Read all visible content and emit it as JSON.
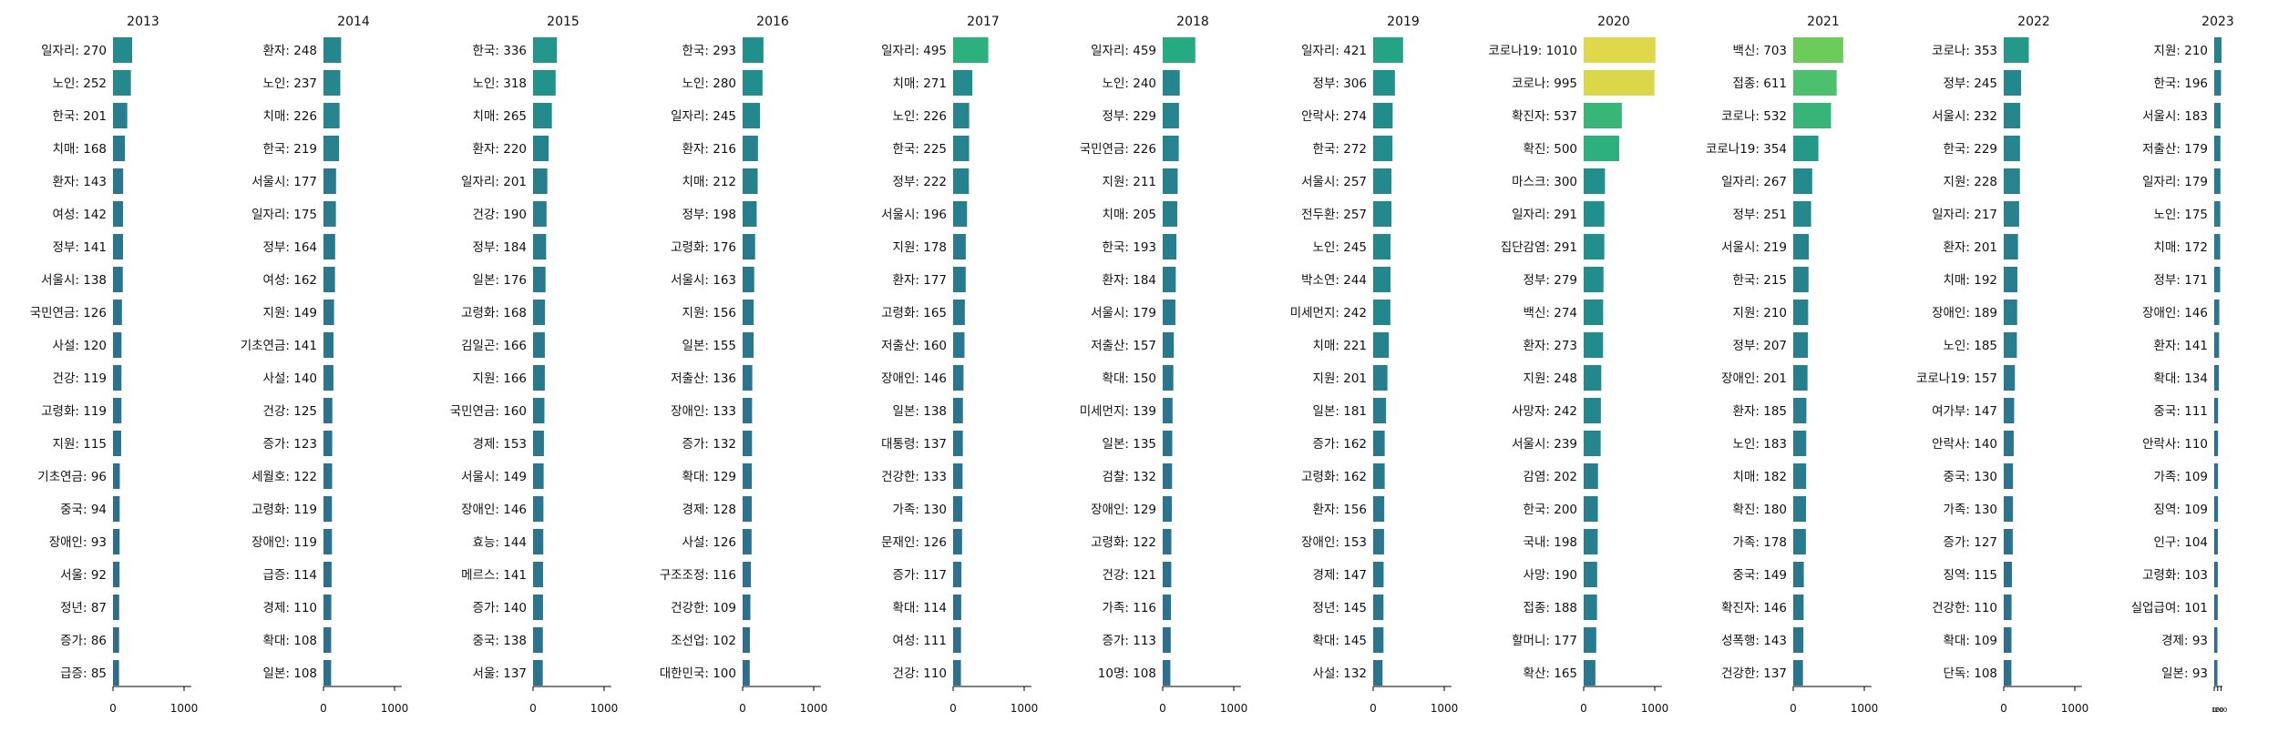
{
  "chart_data": [
    {
      "type": "bar",
      "title": "2013",
      "x_ticks": [
        "0",
        "1000"
      ],
      "xlim": [
        0,
        1100
      ],
      "categories": [
        "일자리",
        "노인",
        "한국",
        "치매",
        "환자",
        "여성",
        "정부",
        "서울시",
        "국민연금",
        "사설",
        "건강",
        "고령화",
        "지원",
        "기초연금",
        "중국",
        "장애인",
        "서울",
        "정년",
        "증가",
        "급증"
      ],
      "values": [
        270,
        252,
        201,
        168,
        143,
        142,
        141,
        138,
        126,
        120,
        119,
        119,
        115,
        96,
        94,
        93,
        92,
        87,
        86,
        85
      ],
      "labels": [
        "일자리: 270",
        "노인: 252",
        "한국: 201",
        "치매: 168",
        "환자: 143",
        "여성: 142",
        "정부: 141",
        "서울시: 138",
        "국민연금: 126",
        "사설: 120",
        "건강: 119",
        "고령화: 119",
        "지원: 115",
        "기초연금: 96",
        "중국: 94",
        "장애인: 93",
        "서울: 92",
        "정년: 87",
        "증가: 86",
        "급증: 85"
      ]
    },
    {
      "type": "bar",
      "title": "2014",
      "x_ticks": [
        "0",
        "1000"
      ],
      "xlim": [
        0,
        1100
      ],
      "categories": [
        "환자",
        "노인",
        "치매",
        "한국",
        "서울시",
        "일자리",
        "정부",
        "여성",
        "지원",
        "기초연금",
        "사설",
        "건강",
        "증가",
        "세월호",
        "고령화",
        "장애인",
        "급증",
        "경제",
        "확대",
        "일본"
      ],
      "values": [
        248,
        237,
        226,
        219,
        177,
        175,
        164,
        162,
        149,
        141,
        140,
        125,
        123,
        122,
        119,
        119,
        114,
        110,
        108,
        108
      ],
      "labels": [
        "환자: 248",
        "노인: 237",
        "치매: 226",
        "한국: 219",
        "서울시: 177",
        "일자리: 175",
        "정부: 164",
        "여성: 162",
        "지원: 149",
        "기초연금: 141",
        "사설: 140",
        "건강: 125",
        "증가: 123",
        "세월호: 122",
        "고령화: 119",
        "장애인: 119",
        "급증: 114",
        "경제: 110",
        "확대: 108",
        "일본: 108"
      ]
    },
    {
      "type": "bar",
      "title": "2015",
      "x_ticks": [
        "0",
        "1000"
      ],
      "xlim": [
        0,
        1100
      ],
      "categories": [
        "한국",
        "노인",
        "치매",
        "환자",
        "일자리",
        "건강",
        "정부",
        "일본",
        "고령화",
        "김일곤",
        "지원",
        "국민연금",
        "경제",
        "서울시",
        "장애인",
        "효능",
        "메르스",
        "증가",
        "중국",
        "서울"
      ],
      "values": [
        336,
        318,
        265,
        220,
        201,
        190,
        184,
        176,
        168,
        166,
        166,
        160,
        153,
        149,
        146,
        144,
        141,
        140,
        138,
        137
      ],
      "labels": [
        "한국: 336",
        "노인: 318",
        "치매: 265",
        "환자: 220",
        "일자리: 201",
        "건강: 190",
        "정부: 184",
        "일본: 176",
        "고령화: 168",
        "김일곤: 166",
        "지원: 166",
        "국민연금: 160",
        "경제: 153",
        "서울시: 149",
        "장애인: 146",
        "효능: 144",
        "메르스: 141",
        "증가: 140",
        "중국: 138",
        "서울: 137"
      ]
    },
    {
      "type": "bar",
      "title": "2016",
      "x_ticks": [
        "0",
        "1000"
      ],
      "xlim": [
        0,
        1100
      ],
      "categories": [
        "한국",
        "노인",
        "일자리",
        "환자",
        "치매",
        "정부",
        "고령화",
        "서울시",
        "지원",
        "일본",
        "저출산",
        "장애인",
        "증가",
        "확대",
        "경제",
        "사설",
        "구조조정",
        "건강한",
        "조선업",
        "대한민국"
      ],
      "values": [
        293,
        280,
        245,
        216,
        212,
        198,
        176,
        163,
        156,
        155,
        136,
        133,
        132,
        129,
        128,
        126,
        116,
        109,
        102,
        100
      ],
      "labels": [
        "한국: 293",
        "노인: 280",
        "일자리: 245",
        "환자: 216",
        "치매: 212",
        "정부: 198",
        "고령화: 176",
        "서울시: 163",
        "지원: 156",
        "일본: 155",
        "저출산: 136",
        "장애인: 133",
        "증가: 132",
        "확대: 129",
        "경제: 128",
        "사설: 126",
        "구조조정: 116",
        "건강한: 109",
        "조선업: 102",
        "대한민국: 100"
      ]
    },
    {
      "type": "bar",
      "title": "2017",
      "x_ticks": [
        "0",
        "1000"
      ],
      "xlim": [
        0,
        1100
      ],
      "categories": [
        "일자리",
        "치매",
        "노인",
        "한국",
        "정부",
        "서울시",
        "지원",
        "환자",
        "고령화",
        "저출산",
        "장애인",
        "일본",
        "대통령",
        "건강한",
        "가족",
        "문재인",
        "증가",
        "확대",
        "여성",
        "건강"
      ],
      "values": [
        495,
        271,
        226,
        225,
        222,
        196,
        178,
        177,
        165,
        160,
        146,
        138,
        137,
        133,
        130,
        126,
        117,
        114,
        111,
        110
      ],
      "labels": [
        "일자리: 495",
        "치매: 271",
        "노인: 226",
        "한국: 225",
        "정부: 222",
        "서울시: 196",
        "지원: 178",
        "환자: 177",
        "고령화: 165",
        "저출산: 160",
        "장애인: 146",
        "일본: 138",
        "대통령: 137",
        "건강한: 133",
        "가족: 130",
        "문재인: 126",
        "증가: 117",
        "확대: 114",
        "여성: 111",
        "건강: 110"
      ]
    },
    {
      "type": "bar",
      "title": "2018",
      "x_ticks": [
        "0",
        "1000"
      ],
      "xlim": [
        0,
        1100
      ],
      "categories": [
        "일자리",
        "노인",
        "정부",
        "국민연금",
        "지원",
        "치매",
        "한국",
        "환자",
        "서울시",
        "저출산",
        "확대",
        "미세먼지",
        "일본",
        "검찰",
        "장애인",
        "고령화",
        "건강",
        "가족",
        "증가",
        "10명"
      ],
      "values": [
        459,
        240,
        229,
        226,
        211,
        205,
        193,
        184,
        179,
        157,
        150,
        139,
        135,
        132,
        129,
        122,
        121,
        116,
        113,
        108
      ],
      "labels": [
        "일자리: 459",
        "노인: 240",
        "정부: 229",
        "국민연금: 226",
        "지원: 211",
        "치매: 205",
        "한국: 193",
        "환자: 184",
        "서울시: 179",
        "저출산: 157",
        "확대: 150",
        "미세먼지: 139",
        "일본: 135",
        "검찰: 132",
        "장애인: 129",
        "고령화: 122",
        "건강: 121",
        "가족: 116",
        "증가: 113",
        "10명: 108"
      ]
    },
    {
      "type": "bar",
      "title": "2019",
      "x_ticks": [
        "0",
        "1000"
      ],
      "xlim": [
        0,
        1100
      ],
      "categories": [
        "일자리",
        "정부",
        "안락사",
        "한국",
        "서울시",
        "전두환",
        "노인",
        "박소연",
        "미세먼지",
        "치매",
        "지원",
        "일본",
        "증가",
        "고령화",
        "환자",
        "장애인",
        "경제",
        "정년",
        "확대",
        "사설"
      ],
      "values": [
        421,
        306,
        274,
        272,
        257,
        257,
        245,
        244,
        242,
        221,
        201,
        181,
        162,
        162,
        156,
        153,
        147,
        145,
        145,
        132
      ],
      "labels": [
        "일자리: 421",
        "정부: 306",
        "안락사: 274",
        "한국: 272",
        "서울시: 257",
        "전두환: 257",
        "노인: 245",
        "박소연: 244",
        "미세먼지: 242",
        "치매: 221",
        "지원: 201",
        "일본: 181",
        "증가: 162",
        "고령화: 162",
        "환자: 156",
        "장애인: 153",
        "경제: 147",
        "정년: 145",
        "확대: 145",
        "사설: 132"
      ]
    },
    {
      "type": "bar",
      "title": "2020",
      "x_ticks": [
        "0",
        "1000"
      ],
      "xlim": [
        0,
        1100
      ],
      "categories": [
        "코로나19",
        "코로나",
        "확진자",
        "확진",
        "마스크",
        "일자리",
        "집단감염",
        "정부",
        "백신",
        "환자",
        "지원",
        "사망자",
        "서울시",
        "감염",
        "한국",
        "국내",
        "사망",
        "접종",
        "할머니",
        "확산"
      ],
      "values": [
        1010,
        995,
        537,
        500,
        300,
        291,
        291,
        279,
        274,
        273,
        248,
        242,
        239,
        202,
        200,
        198,
        190,
        188,
        177,
        165
      ],
      "labels": [
        "코로나19: 1010",
        "코로나: 995",
        "확진자: 537",
        "확진: 500",
        "마스크: 300",
        "일자리: 291",
        "집단감염: 291",
        "정부: 279",
        "백신: 274",
        "환자: 273",
        "지원: 248",
        "사망자: 242",
        "서울시: 239",
        "감염: 202",
        "한국: 200",
        "국내: 198",
        "사망: 190",
        "접종: 188",
        "할머니: 177",
        "확산: 165"
      ]
    },
    {
      "type": "bar",
      "title": "2021",
      "x_ticks": [
        "0",
        "1000"
      ],
      "xlim": [
        0,
        1100
      ],
      "categories": [
        "백신",
        "접종",
        "코로나",
        "코로나19",
        "일자리",
        "정부",
        "서울시",
        "한국",
        "지원",
        "정부",
        "장애인",
        "환자",
        "노인",
        "치매",
        "확진",
        "가족",
        "중국",
        "확진자",
        "성폭행",
        "건강한"
      ],
      "values": [
        703,
        611,
        532,
        354,
        267,
        251,
        219,
        215,
        210,
        207,
        201,
        185,
        183,
        182,
        180,
        178,
        149,
        146,
        143,
        137
      ],
      "labels": [
        "백신: 703",
        "접종: 611",
        "코로나: 532",
        "코로나19: 354",
        "일자리: 267",
        "정부: 251",
        "서울시: 219",
        "한국: 215",
        "지원: 210",
        "정부: 207",
        "장애인: 201",
        "환자: 185",
        "노인: 183",
        "치매: 182",
        "확진: 180",
        "가족: 178",
        "중국: 149",
        "확진자: 146",
        "성폭행: 143",
        "건강한: 137"
      ]
    },
    {
      "type": "bar",
      "title": "2022",
      "x_ticks": [
        "0",
        "1000"
      ],
      "xlim": [
        0,
        1100
      ],
      "categories": [
        "코로나",
        "정부",
        "서울시",
        "한국",
        "지원",
        "일자리",
        "환자",
        "치매",
        "장애인",
        "노인",
        "코로나19",
        "여가부",
        "안락사",
        "중국",
        "가족",
        "증가",
        "징역",
        "건강한",
        "확대",
        "단독"
      ],
      "values": [
        353,
        245,
        232,
        229,
        228,
        217,
        201,
        192,
        189,
        185,
        157,
        147,
        140,
        130,
        130,
        127,
        115,
        110,
        109,
        108
      ],
      "labels": [
        "코로나: 353",
        "정부: 245",
        "서울시: 232",
        "한국: 229",
        "지원: 228",
        "일자리: 217",
        "환자: 201",
        "치매: 192",
        "장애인: 189",
        "노인: 185",
        "코로나19: 157",
        "여가부: 147",
        "안락사: 140",
        "중국: 130",
        "가족: 130",
        "증가: 127",
        "징역: 115",
        "건강한: 110",
        "확대: 109",
        "단독: 108"
      ]
    },
    {
      "type": "bar",
      "title": "2023",
      "x_ticks": [
        "0",
        "100",
        "200"
      ],
      "xlim": [
        0,
        1100
      ],
      "categories": [
        "지원",
        "한국",
        "서울시",
        "저출산",
        "일자리",
        "노인",
        "치매",
        "정부",
        "장애인",
        "환자",
        "확대",
        "중국",
        "안락사",
        "가족",
        "징역",
        "인구",
        "고령화",
        "실업급여",
        "경제",
        "일본"
      ],
      "values": [
        210,
        196,
        183,
        179,
        179,
        175,
        172,
        171,
        146,
        141,
        134,
        111,
        110,
        109,
        109,
        104,
        103,
        101,
        93,
        93
      ],
      "labels": [
        "지원: 210",
        "한국: 196",
        "서울시: 183",
        "저출산: 179",
        "일자리: 179",
        "노인: 175",
        "치매: 172",
        "정부: 171",
        "장애인: 146",
        "환자: 141",
        "확대: 134",
        "중국: 111",
        "안락사: 110",
        "가족: 109",
        "징역: 109",
        "인구: 104",
        "고령화: 103",
        "실업급여: 101",
        "경제: 93",
        "일본: 93"
      ]
    }
  ]
}
